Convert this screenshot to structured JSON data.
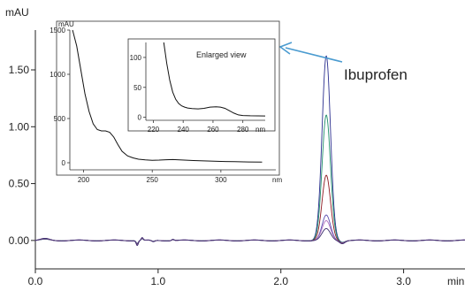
{
  "chart_data": [
    {
      "type": "line",
      "ylabel": "mAU",
      "xlabel": "min",
      "xlim": [
        0.0,
        3.5
      ],
      "ylim": [
        -0.25,
        1.85
      ],
      "x_ticks": [
        "0.0",
        "1.0",
        "2.0",
        "3.0"
      ],
      "y_ticks": [
        "0.00",
        "0.50",
        "1.00",
        "1.50"
      ],
      "grid": false,
      "annotation": "Ibuprofen",
      "series": [
        {
          "peak_time": 2.37,
          "height": 1.62,
          "color": "#2b2f8f"
        },
        {
          "peak_time": 2.37,
          "height": 1.1,
          "color": "#1f8f6a"
        },
        {
          "peak_time": 2.37,
          "height": 0.57,
          "color": "#8e1a22"
        },
        {
          "peak_time": 2.37,
          "height": 0.22,
          "color": "#5a4fb0"
        },
        {
          "peak_time": 2.37,
          "height": 0.17,
          "color": "#b070c0"
        },
        {
          "peak_time": 2.37,
          "height": 0.1,
          "color": "#3a2a6a"
        }
      ]
    },
    {
      "type": "line",
      "role": "inset-spectrum",
      "ylabel": "mAU",
      "xlabel": "nm",
      "xlim": [
        190,
        340
      ],
      "ylim": [
        -80,
        1500
      ],
      "x_ticks": [
        "200",
        "250",
        "300"
      ],
      "y_ticks": [
        "0",
        "500",
        "1000",
        "1500"
      ],
      "x": [
        192,
        195,
        198,
        201,
        204,
        207,
        210,
        213,
        216,
        219,
        222,
        225,
        228,
        232,
        236,
        240,
        245,
        250,
        255,
        260,
        265,
        270,
        280,
        290,
        300,
        310,
        320,
        330
      ],
      "y": [
        1500,
        1320,
        1050,
        780,
        580,
        440,
        375,
        360,
        360,
        345,
        290,
        205,
        130,
        78,
        55,
        40,
        32,
        28,
        30,
        34,
        36,
        32,
        25,
        20,
        15,
        12,
        9,
        7
      ],
      "color": "#111111"
    },
    {
      "type": "line",
      "role": "enlarged-view",
      "title": "Enlarged view",
      "xlabel": "nm",
      "xlim": [
        215,
        295
      ],
      "ylim": [
        -5,
        125
      ],
      "x_ticks": [
        "220",
        "240",
        "260",
        "280"
      ],
      "y_ticks": [
        "0",
        "50",
        "100"
      ],
      "x": [
        227,
        229,
        231,
        233,
        235,
        237,
        239,
        241,
        243,
        246,
        250,
        254,
        258,
        262,
        265,
        268,
        271,
        274,
        277,
        280,
        285,
        290,
        295
      ],
      "y": [
        125,
        90,
        62,
        42,
        30,
        23,
        19,
        17,
        15.5,
        14.5,
        14,
        15,
        17,
        17.5,
        17,
        15,
        11,
        7,
        4,
        3,
        2.5,
        2.3,
        2.2
      ],
      "color": "#111111"
    }
  ]
}
